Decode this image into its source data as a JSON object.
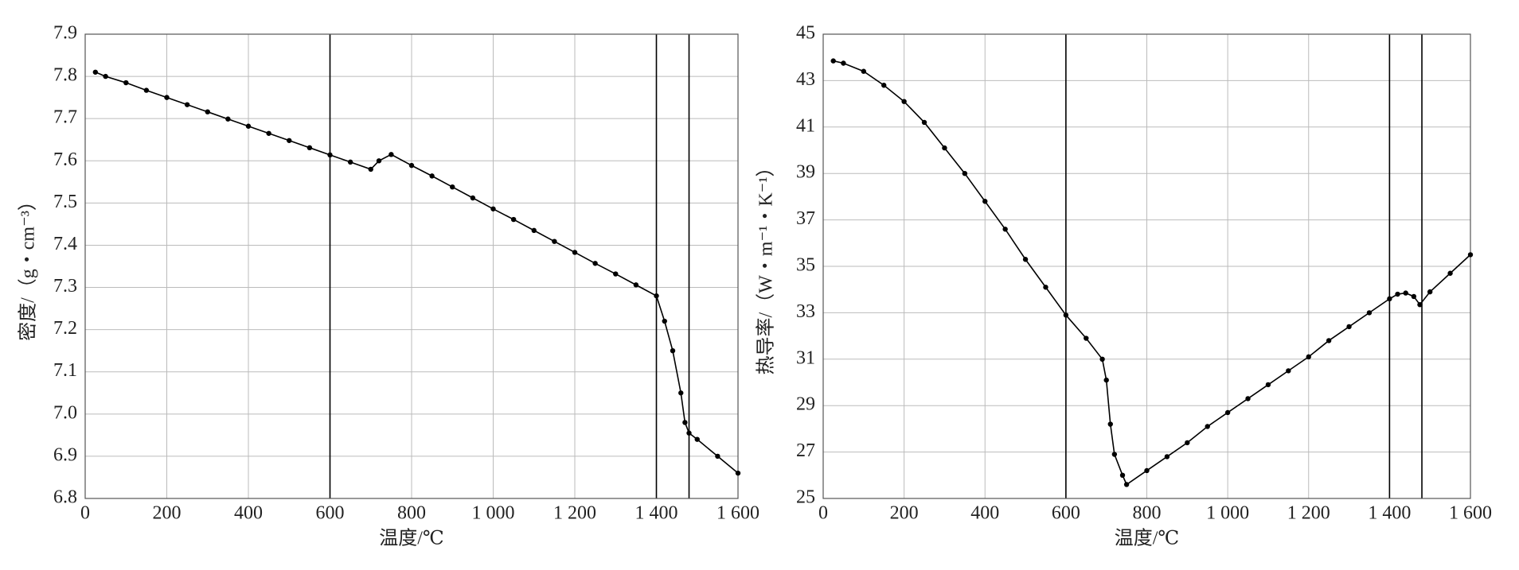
{
  "chart_data": [
    {
      "type": "line",
      "xlabel": "温度/℃",
      "ylabel": "密度/（g・cm⁻³）",
      "color": "#000000",
      "grid": true,
      "xlim": [
        0,
        1600
      ],
      "xticks": [
        0,
        200,
        400,
        600,
        800,
        {
          "value": 1000,
          "label": "1 000"
        },
        {
          "value": 1200,
          "label": "1 200"
        },
        {
          "value": 1400,
          "label": "1 400"
        },
        {
          "value": 1600,
          "label": "1 600"
        }
      ],
      "ylim": [
        6.8,
        7.9
      ],
      "yticks": [
        6.8,
        6.9,
        {
          "value": 7,
          "label": "7.0"
        },
        7.1,
        7.2,
        7.3,
        7.4,
        7.5,
        7.6,
        7.7,
        7.8,
        7.9
      ],
      "reference_lines": [
        600,
        1400,
        1480
      ],
      "x": [
        25,
        50,
        100,
        150,
        200,
        250,
        300,
        350,
        400,
        450,
        500,
        550,
        600,
        650,
        700,
        720,
        750,
        800,
        850,
        900,
        950,
        1000,
        1050,
        1100,
        1150,
        1200,
        1250,
        1300,
        1350,
        1400,
        1420,
        1440,
        1460,
        1470,
        1480,
        1500,
        1550,
        1600
      ],
      "values": [
        7.81,
        7.8,
        7.785,
        7.767,
        7.75,
        7.733,
        7.716,
        7.699,
        7.682,
        7.665,
        7.648,
        7.631,
        7.614,
        7.597,
        7.58,
        7.6,
        7.615,
        7.589,
        7.564,
        7.538,
        7.512,
        7.486,
        7.461,
        7.435,
        7.409,
        7.383,
        7.357,
        7.332,
        7.306,
        7.28,
        7.22,
        7.15,
        7.05,
        6.98,
        6.955,
        6.94,
        6.9,
        6.86
      ]
    },
    {
      "type": "line",
      "xlabel": "温度/℃",
      "ylabel": "热导率/（W・m⁻¹・K⁻¹）",
      "color": "#000000",
      "grid": true,
      "xlim": [
        0,
        1600
      ],
      "xticks": [
        0,
        200,
        400,
        600,
        800,
        {
          "value": 1000,
          "label": "1 000"
        },
        {
          "value": 1200,
          "label": "1 200"
        },
        {
          "value": 1400,
          "label": "1 400"
        },
        {
          "value": 1600,
          "label": "1 600"
        }
      ],
      "ylim": [
        25,
        45
      ],
      "yticks": [
        25,
        27,
        29,
        31,
        33,
        35,
        37,
        39,
        41,
        43,
        45
      ],
      "reference_lines": [
        600,
        1400,
        1480
      ],
      "x": [
        25,
        50,
        100,
        150,
        200,
        250,
        300,
        350,
        400,
        450,
        500,
        550,
        600,
        650,
        690,
        700,
        710,
        720,
        740,
        750,
        800,
        850,
        900,
        950,
        1000,
        1050,
        1100,
        1150,
        1200,
        1250,
        1300,
        1350,
        1400,
        1420,
        1440,
        1460,
        1475,
        1500,
        1550,
        1600
      ],
      "values": [
        43.85,
        43.75,
        43.4,
        42.8,
        42.1,
        41.2,
        40.1,
        39.0,
        37.8,
        36.6,
        35.3,
        34.1,
        32.9,
        31.9,
        31.0,
        30.1,
        28.2,
        26.9,
        26.0,
        25.6,
        26.2,
        26.8,
        27.4,
        28.1,
        28.7,
        29.3,
        29.9,
        30.5,
        31.1,
        31.8,
        32.4,
        33.0,
        33.6,
        33.8,
        33.85,
        33.7,
        33.35,
        33.9,
        34.7,
        35.5
      ]
    }
  ]
}
